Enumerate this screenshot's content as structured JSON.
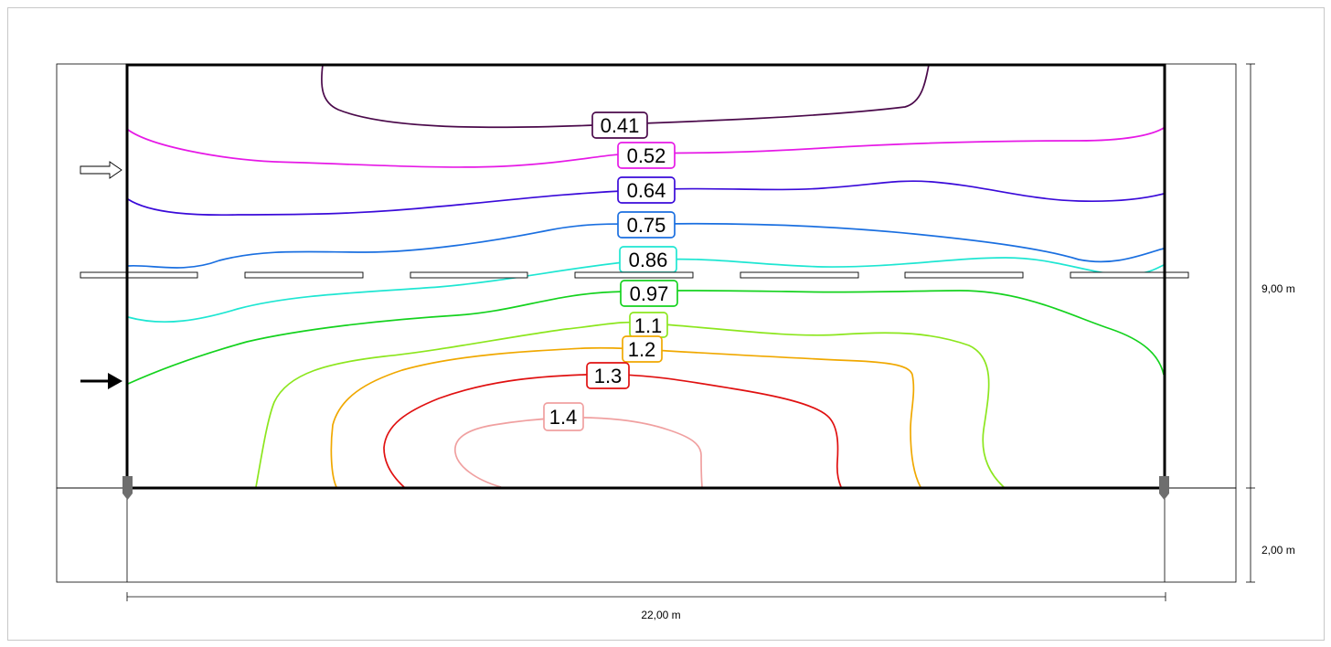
{
  "page_title": "",
  "dimensions": {
    "width_label": "22,00 m",
    "height_label": "9,00 m",
    "depth_label": "2,00 m"
  },
  "contour_levels": [
    {
      "label": "0.41",
      "color": "#4b0a4b"
    },
    {
      "label": "0.52",
      "color": "#e619e6"
    },
    {
      "label": "0.64",
      "color": "#3a0ad9"
    },
    {
      "label": "0.75",
      "color": "#1a6fe0"
    },
    {
      "label": "0.86",
      "color": "#1ee6d2"
    },
    {
      "label": "0.97",
      "color": "#14d21e"
    },
    {
      "label": "1.1",
      "color": "#8ce61e"
    },
    {
      "label": "1.2",
      "color": "#f0a800"
    },
    {
      "label": "1.3",
      "color": "#e01010"
    },
    {
      "label": "1.4",
      "color": "#f0a0a0"
    }
  ]
}
